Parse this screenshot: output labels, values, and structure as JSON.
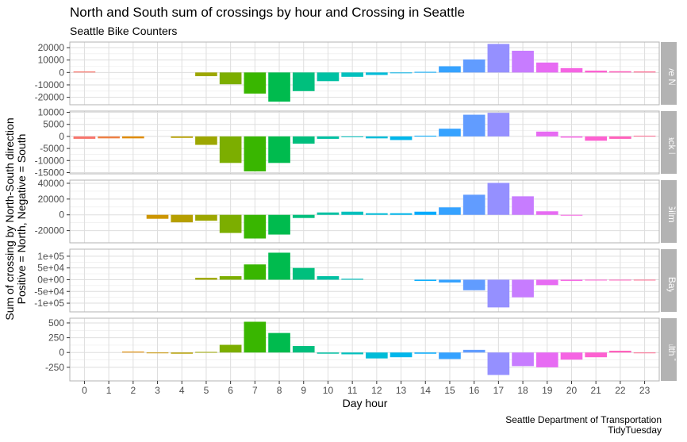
{
  "chart_data": {
    "type": "bar",
    "title": "North and South sum of crossings by hour and Crossing in Seattle",
    "subtitle": "Seattle Bike Counters",
    "xlabel": "Day hour",
    "ylabel_line1": "Sum of crossing by North-South direction",
    "ylabel_line2": "Positive = North, Negative = South",
    "caption_line1": "Seattle Department of Transportation",
    "caption_line2": "TidyTuesday",
    "x": [
      0,
      1,
      2,
      3,
      4,
      5,
      6,
      7,
      8,
      9,
      10,
      11,
      12,
      13,
      14,
      15,
      16,
      17,
      18,
      19,
      20,
      21,
      22,
      23
    ],
    "x_tick_labels": [
      "0",
      "1",
      "2",
      "3",
      "4",
      "5",
      "6",
      "7",
      "8",
      "9",
      "10",
      "11",
      "12",
      "13",
      "14",
      "15",
      "16",
      "17",
      "18",
      "19",
      "20",
      "21",
      "22",
      "23"
    ],
    "hour_colors": [
      "#F8766D",
      "#EE8043",
      "#E08B00",
      "#CD9600",
      "#B69F00",
      "#9DA700",
      "#7CAE00",
      "#39B600",
      "#00BB4E",
      "#00BF7D",
      "#00C1A3",
      "#00C0BD",
      "#00BCD8",
      "#00B6EB",
      "#00ABFD",
      "#35A2FF",
      "#619CFF",
      "#9590FF",
      "#C77CFF",
      "#E76BF3",
      "#F564E3",
      "#FD61D1",
      "#FF62BC",
      "#FF6C91"
    ],
    "panel_background": "#ffffff",
    "grid_color": "#dedede",
    "strip_background": "#b3b3b3",
    "grid": true,
    "legend": "none",
    "facets": [
      {
        "strip_label": "Burke Gilman Trail / 39th Ave NE Greenway at NE 62nd St",
        "ylim": [
          -26000,
          24500
        ],
        "y_ticks": [
          -20000,
          -10000,
          0,
          10000,
          20000
        ],
        "y_tick_labels": [
          "-20000",
          "-10000",
          "0",
          "10000",
          "20000"
        ],
        "values": [
          800,
          0,
          0,
          0,
          0,
          -3000,
          -9500,
          -17000,
          -23500,
          -15000,
          -7000,
          -3500,
          -2000,
          -500,
          500,
          5000,
          10500,
          23000,
          17500,
          8000,
          3500,
          1500,
          1000,
          800
        ]
      },
      {
        "strip_label": "Broadway Cycle Track North Of E Union St",
        "ylim": [
          -15500,
          10500
        ],
        "y_ticks": [
          -15000,
          -10000,
          -5000,
          0,
          5000,
          10000
        ],
        "y_tick_labels": [
          "-15000",
          "-10000",
          "-5000",
          "0",
          "5000",
          "10000"
        ],
        "values": [
          -1000,
          -800,
          -800,
          0,
          -600,
          -3500,
          -11000,
          -14500,
          -11000,
          -3000,
          -1000,
          -300,
          -800,
          -1500,
          300,
          3200,
          9000,
          9800,
          0,
          2000,
          -500,
          -1800,
          -1000,
          300
        ]
      },
      {
        "strip_label": "Burke Gilman Trail",
        "ylim": [
          -35500,
          44000
        ],
        "y_ticks": [
          -20000,
          0,
          20000,
          40000
        ],
        "y_tick_labels": [
          "-20000",
          "0",
          "20000",
          "40000"
        ],
        "values": [
          0,
          0,
          0,
          -5000,
          -9500,
          -7500,
          -23000,
          -30000,
          -25000,
          -4000,
          3000,
          4000,
          2000,
          2000,
          4000,
          9500,
          25500,
          40500,
          23500,
          4500,
          -1000,
          0,
          0,
          0
        ]
      },
      {
        "strip_label": "Elliot Bay Trail",
        "ylim": [
          -137000,
          130000
        ],
        "y_ticks": [
          -100000,
          -50000,
          0,
          50000,
          100000
        ],
        "y_tick_labels": [
          "-1e+05",
          "-5e+04",
          "0e+00",
          "5e+04",
          "1e+05"
        ],
        "values": [
          0,
          0,
          0,
          0,
          0,
          8000,
          15000,
          65000,
          115000,
          50000,
          15000,
          4000,
          0,
          0,
          -5000,
          -12000,
          -45000,
          -118000,
          -75000,
          -23000,
          -5000,
          -3000,
          -2000,
          -1000
        ]
      },
      {
        "strip_label": "Sealth Trail",
        "ylim": [
          -480,
          580
        ],
        "y_ticks": [
          -250,
          0,
          250,
          500
        ],
        "y_tick_labels": [
          "-250",
          "0",
          "250",
          "500"
        ],
        "values": [
          0,
          0,
          15,
          -10,
          -20,
          10,
          130,
          520,
          330,
          110,
          -20,
          -30,
          -100,
          -80,
          -20,
          -110,
          45,
          -380,
          -230,
          -250,
          -120,
          -80,
          30,
          -10
        ]
      }
    ]
  }
}
